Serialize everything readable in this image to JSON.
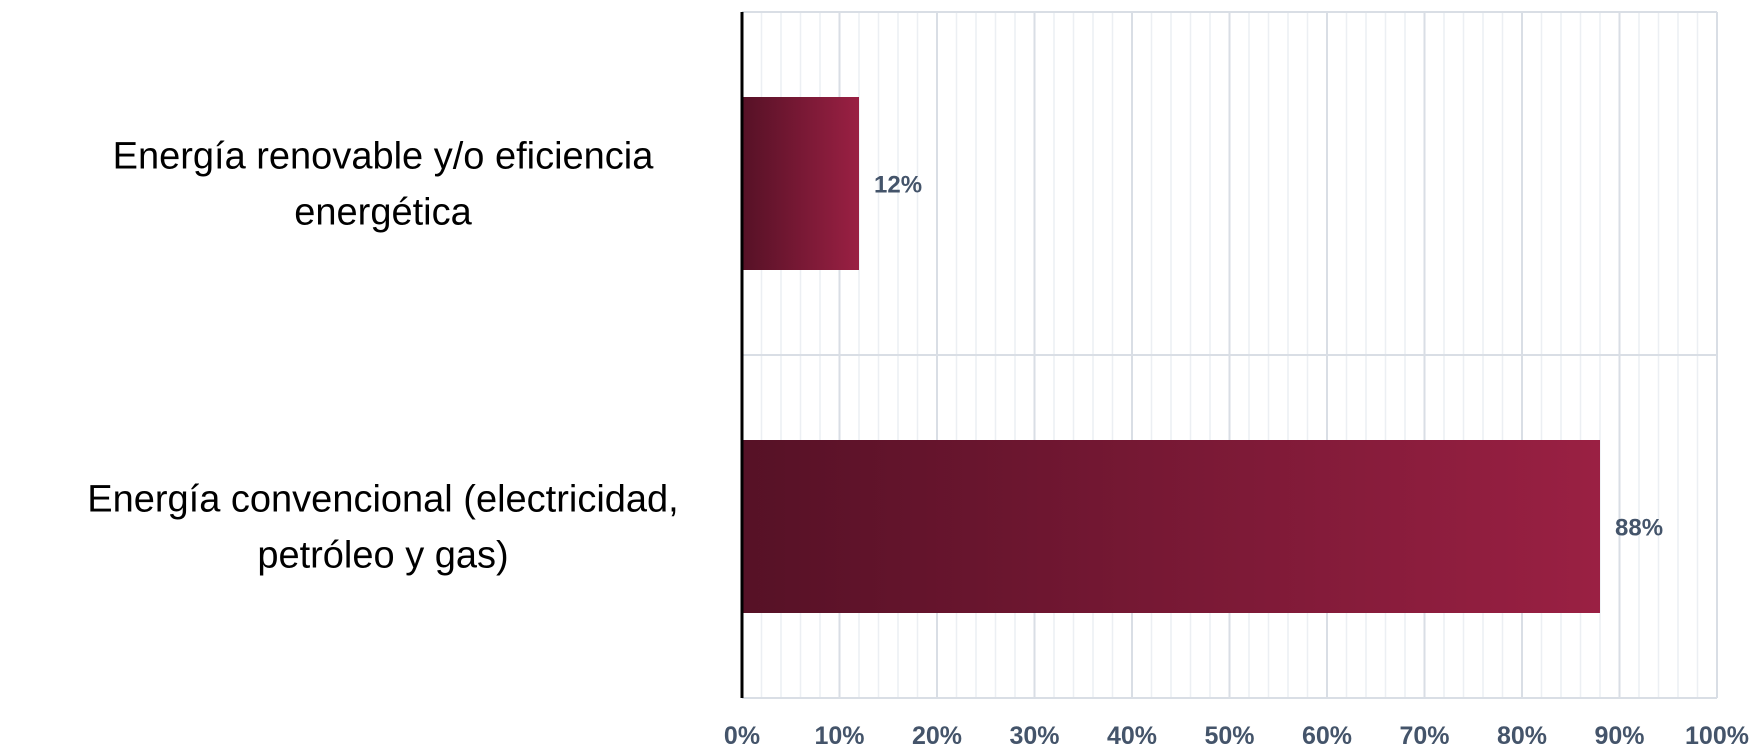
{
  "chart_data": {
    "type": "bar",
    "orientation": "horizontal",
    "title": "",
    "xlabel": "",
    "ylabel": "",
    "categories": [
      [
        "Energía renovable y/o eficiencia",
        "energética"
      ],
      [
        "Energía convencional (electricidad,",
        "petróleo y gas)"
      ]
    ],
    "values": [
      12,
      88
    ],
    "data_labels": [
      "12%",
      "88%"
    ],
    "xlim": [
      0,
      100
    ],
    "x_ticks": [
      0,
      10,
      20,
      30,
      40,
      50,
      60,
      70,
      80,
      90,
      100
    ],
    "x_tick_labels": [
      "0%",
      "10%",
      "20%",
      "30%",
      "40%",
      "50%",
      "60%",
      "70%",
      "80%",
      "90%",
      "100%"
    ],
    "grid": true,
    "legend": "none",
    "colors": {
      "bar_gradient_start": "#561126",
      "bar_gradient_end": "#9a2043",
      "grid_major": "#d9dee5",
      "grid_minor": "#eceff3",
      "axis": "#000000",
      "tick_label": "#44546a",
      "data_label": "#44546a",
      "category_label": "#000000"
    }
  }
}
